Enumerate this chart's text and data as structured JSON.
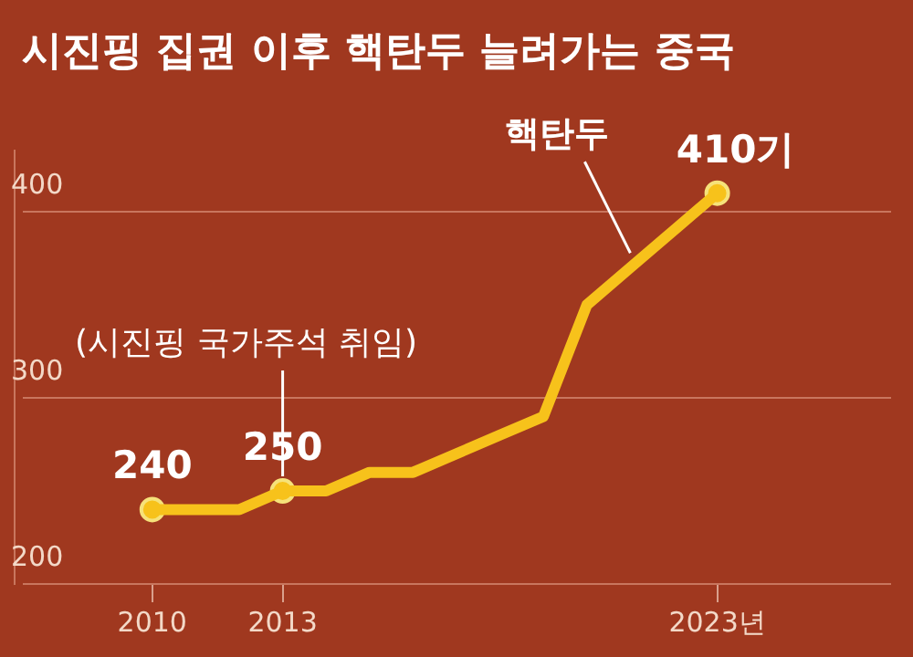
{
  "chart_data": {
    "type": "line",
    "title": "시진핑 집권 이후 핵탄두 늘려가는 중국",
    "x": [
      2010,
      2011,
      2012,
      2013,
      2014,
      2015,
      2016,
      2017,
      2018,
      2019,
      2020,
      2021,
      2022,
      2023
    ],
    "series": [
      {
        "color": "#f7c21b",
        "values": [
          240,
          240,
          240,
          250,
          250,
          260,
          260,
          270,
          280,
          290,
          350,
          370,
          390,
          410
        ],
        "marker": "none"
      },
      {
        "type": "scatter",
        "color": "#f7c21b",
        "x": [
          2010,
          2013,
          2023
        ],
        "values": [
          240,
          250,
          410
        ],
        "marker": "circle",
        "value_labels": [
          "240",
          "250",
          "410기"
        ]
      }
    ],
    "xlim": [
      2007,
      2027
    ],
    "xticks": [
      2010,
      2013,
      {
        "value": 2023,
        "label": "2023년"
      }
    ],
    "ylim": [
      200,
      433
    ],
    "yticks": [
      200,
      300,
      400
    ],
    "grid": "y",
    "legend": false,
    "annotations": [
      {
        "text": "(시진핑 국가주석 취임)",
        "x": 2013,
        "y": 250
      },
      {
        "text": "핵탄두",
        "x": 2021,
        "y": 370
      }
    ]
  }
}
